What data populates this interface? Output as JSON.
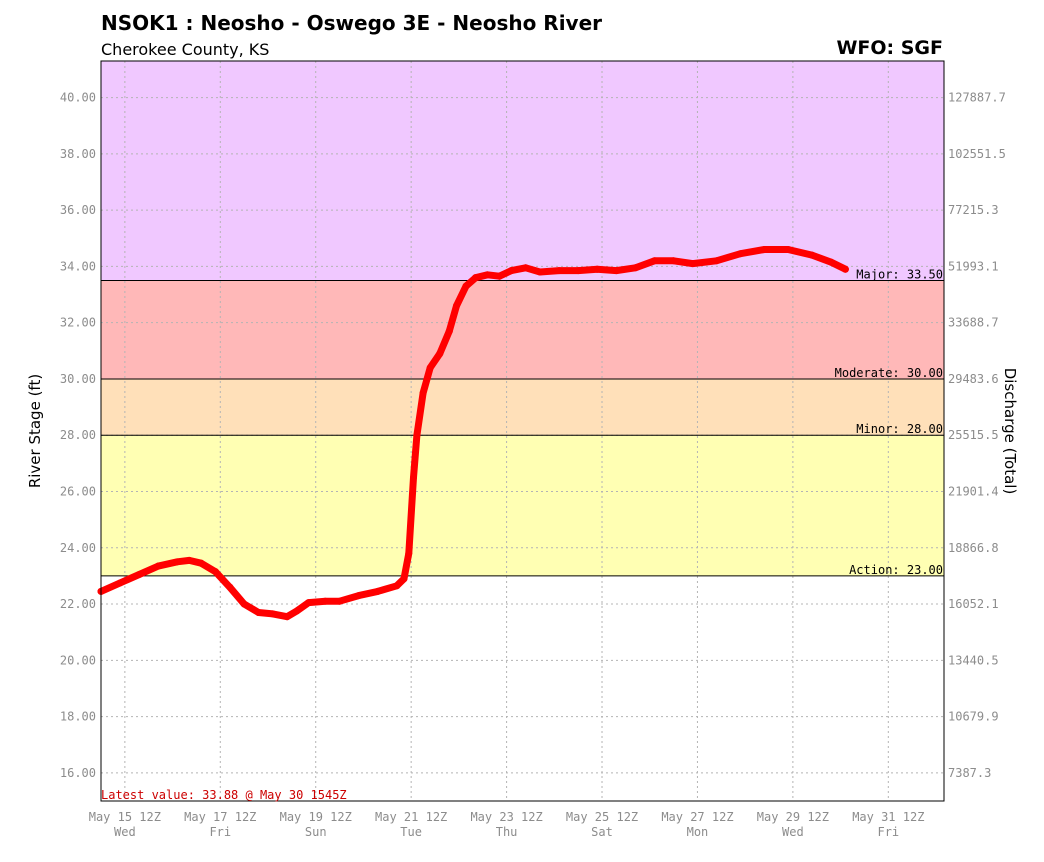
{
  "header": {
    "title": "NSOK1 : Neosho - Oswego 3E - Neosho River",
    "subtitle": "Cherokee County, KS",
    "wfo": "WFO: SGF"
  },
  "chart_data": {
    "type": "line",
    "ylabel": "River Stage (ft)",
    "y2label": "Discharge (Total)",
    "ylim": [
      15.0,
      41.3
    ],
    "grid": true,
    "y_ticks": [
      "16.00",
      "18.00",
      "20.00",
      "22.00",
      "24.00",
      "26.00",
      "28.00",
      "30.00",
      "32.00",
      "34.00",
      "36.00",
      "38.00",
      "40.00"
    ],
    "y2_ticks": [
      {
        "stage": 16,
        "label": "7387.3"
      },
      {
        "stage": 18,
        "label": "10679.9"
      },
      {
        "stage": 20,
        "label": "13440.5"
      },
      {
        "stage": 22,
        "label": "16052.1"
      },
      {
        "stage": 24,
        "label": "18866.8"
      },
      {
        "stage": 26,
        "label": "21901.4"
      },
      {
        "stage": 28,
        "label": "25515.5"
      },
      {
        "stage": 30,
        "label": "29483.6"
      },
      {
        "stage": 32,
        "label": "33688.7"
      },
      {
        "stage": 34,
        "label": "51993.1"
      },
      {
        "stage": 36,
        "label": "77215.3"
      },
      {
        "stage": 38,
        "label": "102551.5"
      },
      {
        "stage": 40,
        "label": "127887.7"
      }
    ],
    "x_range": [
      0,
      17.667
    ],
    "x_ticks": [
      {
        "day": 0.5,
        "label": "May 15 12Z",
        "day_label": "Wed"
      },
      {
        "day": 2.5,
        "label": "May 17 12Z",
        "day_label": "Fri"
      },
      {
        "day": 4.5,
        "label": "May 19 12Z",
        "day_label": "Sun"
      },
      {
        "day": 6.5,
        "label": "May 21 12Z",
        "day_label": "Tue"
      },
      {
        "day": 8.5,
        "label": "May 23 12Z",
        "day_label": "Thu"
      },
      {
        "day": 10.5,
        "label": "May 25 12Z",
        "day_label": "Sat"
      },
      {
        "day": 12.5,
        "label": "May 27 12Z",
        "day_label": "Mon"
      },
      {
        "day": 14.5,
        "label": "May 29 12Z",
        "day_label": "Wed"
      },
      {
        "day": 16.5,
        "label": "May 31 12Z",
        "day_label": "Fri"
      }
    ],
    "thresholds": [
      {
        "name": "Action",
        "value": 23.0,
        "label": "Action: 23.00",
        "color": "#ffffb3"
      },
      {
        "name": "Minor",
        "value": 28.0,
        "label": "Minor: 28.00",
        "color": "#ffe0b9"
      },
      {
        "name": "Moderate",
        "value": 30.0,
        "label": "Moderate: 30.00",
        "color": "#ffb8b8"
      },
      {
        "name": "Major",
        "value": 33.5,
        "label": "Major: 33.50",
        "color": "#f0c8ff"
      }
    ],
    "series": [
      {
        "color": "#ff0000",
        "points": [
          [
            0.0,
            22.45
          ],
          [
            0.4,
            22.75
          ],
          [
            0.8,
            23.05
          ],
          [
            1.2,
            23.35
          ],
          [
            1.6,
            23.5
          ],
          [
            1.85,
            23.55
          ],
          [
            2.1,
            23.45
          ],
          [
            2.4,
            23.15
          ],
          [
            2.7,
            22.6
          ],
          [
            3.0,
            22.0
          ],
          [
            3.3,
            21.7
          ],
          [
            3.6,
            21.65
          ],
          [
            3.9,
            21.55
          ],
          [
            4.1,
            21.75
          ],
          [
            4.35,
            22.05
          ],
          [
            4.7,
            22.1
          ],
          [
            5.0,
            22.1
          ],
          [
            5.4,
            22.3
          ],
          [
            5.8,
            22.45
          ],
          [
            6.2,
            22.65
          ],
          [
            6.35,
            22.9
          ],
          [
            6.45,
            23.8
          ],
          [
            6.55,
            26.5
          ],
          [
            6.62,
            28.0
          ],
          [
            6.75,
            29.5
          ],
          [
            6.9,
            30.4
          ],
          [
            7.1,
            30.9
          ],
          [
            7.3,
            31.7
          ],
          [
            7.45,
            32.6
          ],
          [
            7.65,
            33.3
          ],
          [
            7.85,
            33.6
          ],
          [
            8.1,
            33.7
          ],
          [
            8.35,
            33.65
          ],
          [
            8.6,
            33.85
          ],
          [
            8.9,
            33.95
          ],
          [
            9.2,
            33.8
          ],
          [
            9.6,
            33.85
          ],
          [
            10.0,
            33.85
          ],
          [
            10.4,
            33.9
          ],
          [
            10.8,
            33.85
          ],
          [
            11.2,
            33.95
          ],
          [
            11.6,
            34.2
          ],
          [
            12.0,
            34.2
          ],
          [
            12.4,
            34.1
          ],
          [
            12.9,
            34.2
          ],
          [
            13.4,
            34.45
          ],
          [
            13.9,
            34.6
          ],
          [
            14.4,
            34.6
          ],
          [
            14.9,
            34.4
          ],
          [
            15.3,
            34.15
          ],
          [
            15.6,
            33.9
          ]
        ]
      }
    ],
    "latest": "Latest value: 33.88 @ May 30 1545Z"
  }
}
